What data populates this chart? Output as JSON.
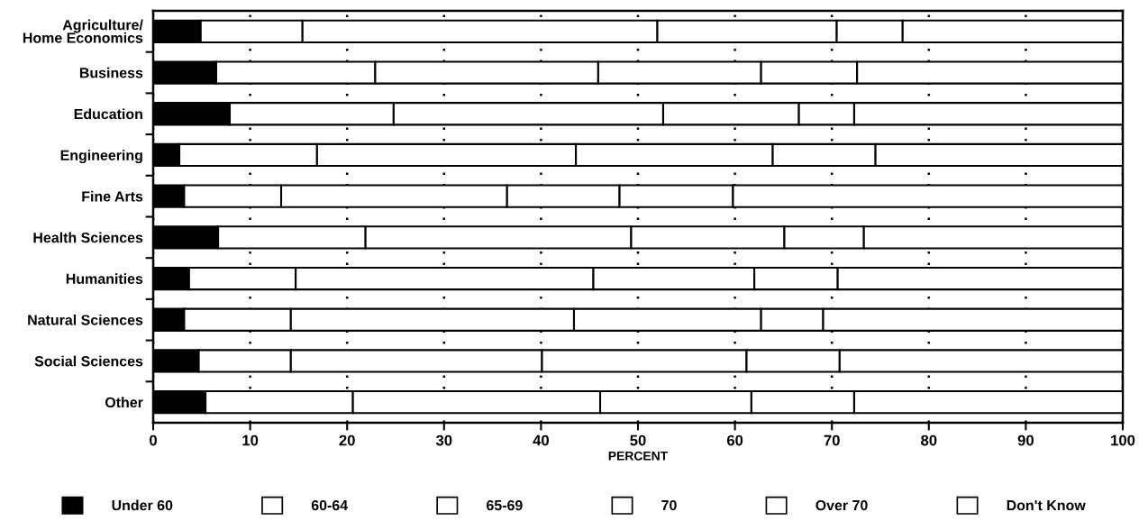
{
  "chart_data": {
    "type": "bar",
    "orientation": "horizontal",
    "stacked": true,
    "categories": [
      "Agriculture/\nHome Economics",
      "Business",
      "Education",
      "Engineering",
      "Fine Arts",
      "Health Sciences",
      "Humanities",
      "Natural Sciences",
      "Social Sciences",
      "Other"
    ],
    "series": [
      {
        "name": "Under 60",
        "color": "#000000",
        "values": [
          4.9,
          6.5,
          7.9,
          2.7,
          3.2,
          6.7,
          3.7,
          3.2,
          4.7,
          5.4
        ]
      },
      {
        "name": "60-64",
        "color": "#ffffff",
        "values": [
          10.5,
          16.4,
          16.9,
          14.2,
          10.0,
          15.2,
          11.0,
          11.0,
          9.5,
          15.2
        ]
      },
      {
        "name": "65-69",
        "color": "#ffffff",
        "values": [
          36.6,
          23.0,
          27.8,
          26.7,
          23.3,
          27.4,
          30.7,
          29.2,
          25.9,
          25.5
        ]
      },
      {
        "name": "70",
        "color": "#ffffff",
        "values": [
          18.5,
          16.8,
          14.0,
          20.3,
          11.6,
          15.8,
          16.6,
          19.3,
          21.1,
          15.6
        ]
      },
      {
        "name": "Over 70",
        "color": "#ffffff",
        "values": [
          6.8,
          9.9,
          5.7,
          10.6,
          11.7,
          8.2,
          8.6,
          6.4,
          9.6,
          10.6
        ]
      },
      {
        "name": "Don't Know",
        "color": "#ffffff",
        "values": [
          22.7,
          27.4,
          27.7,
          25.5,
          40.2,
          26.7,
          29.4,
          30.9,
          29.2,
          27.7
        ]
      }
    ],
    "xlabel": "PERCENT",
    "xlim": [
      0,
      100
    ],
    "xticks": [
      0,
      10,
      20,
      30,
      40,
      50,
      60,
      70,
      80,
      90,
      100
    ],
    "grid": "x",
    "legend": "bottom"
  }
}
